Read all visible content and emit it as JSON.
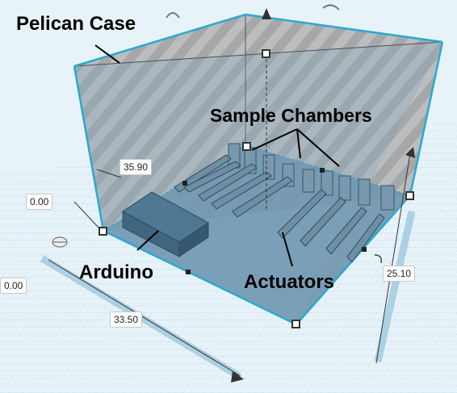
{
  "callouts": {
    "pelican_case": "Pelican Case",
    "sample_chambers": "Sample Chambers",
    "arduino": "Arduino",
    "actuators": "Actuators"
  },
  "dimensions": {
    "height": "35.90",
    "elevation_left": "0.00",
    "elevation_floor": "0.00",
    "length": "33.50",
    "width": "25.10"
  },
  "colors": {
    "grid_background": "#dfeef6",
    "grid_line": "#9ec9dc",
    "case_outline": "#2aa9d2",
    "case_shell": "#8a8a8a",
    "case_floor": "#6d8fa6",
    "dimension_guide": "#7fb6d4"
  },
  "icons": [
    "rotate-arrows-icon",
    "corner-handle-icon",
    "lift-arrow-icon",
    "rotate-handle-icon",
    "mouse-icon"
  ]
}
